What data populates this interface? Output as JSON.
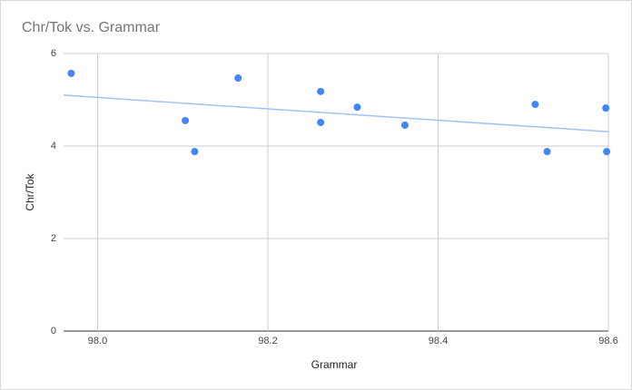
{
  "chart_data": {
    "type": "scatter",
    "title": "Chr/Tok vs. Grammar",
    "x_label": "Grammar",
    "y_label": "Chr/Tok",
    "x": [
      97.969,
      98.103,
      98.114,
      98.165,
      98.262,
      98.262,
      98.305,
      98.361,
      98.514,
      98.528,
      98.597,
      98.598
    ],
    "values": [
      5.57,
      4.55,
      3.88,
      5.47,
      5.18,
      4.51,
      4.84,
      4.45,
      4.9,
      3.88,
      4.82,
      3.88
    ],
    "color": "#4285f4",
    "trendline": {
      "x": [
        97.96,
        98.6
      ],
      "y": [
        5.1,
        4.31
      ],
      "color": "#a4c2f4"
    },
    "xlim": [
      97.96,
      98.6
    ],
    "xticks": [
      {
        "value": 98,
        "label": "98.0"
      },
      98.2,
      98.4,
      98.6
    ],
    "ylim": [
      0,
      6
    ],
    "yticks": [
      0,
      2,
      4,
      6
    ],
    "grid": true
  }
}
